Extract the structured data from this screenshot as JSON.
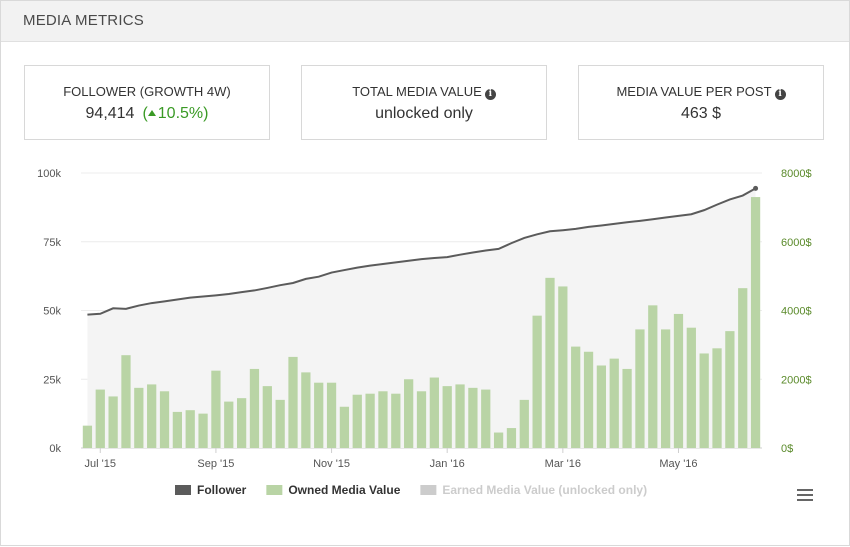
{
  "header": {
    "title": "MEDIA METRICS"
  },
  "cards": [
    {
      "label": "FOLLOWER (GROWTH 4W)",
      "value": "94,414",
      "growth": "10.5%)",
      "growth_prefix": "(",
      "has_info": false
    },
    {
      "label": "TOTAL MEDIA VALUE",
      "value": "unlocked only",
      "has_info": true,
      "info_icon": "info-icon"
    },
    {
      "label": "MEDIA VALUE PER POST",
      "value": "463 $",
      "has_info": true,
      "info_icon": "info-icon"
    }
  ],
  "chart_data": {
    "type": "bar",
    "x_ticks": [
      {
        "label": "Jul '15",
        "index": 1
      },
      {
        "label": "Sep '15",
        "index": 10
      },
      {
        "label": "Nov '15",
        "index": 19
      },
      {
        "label": "Jan '16",
        "index": 28
      },
      {
        "label": "Mar '16",
        "index": 37
      },
      {
        "label": "May '16",
        "index": 46
      }
    ],
    "y_left": {
      "min": 0,
      "max": 100000,
      "ticks": [
        0,
        25000,
        50000,
        75000,
        100000
      ],
      "tick_labels": [
        "0k",
        "25k",
        "50k",
        "75k",
        "100k"
      ]
    },
    "y_right": {
      "min": 0,
      "max": 8000,
      "ticks": [
        0,
        2000,
        4000,
        6000,
        8000
      ],
      "tick_labels": [
        "0$",
        "2000$",
        "4000$",
        "6000$",
        "8000$"
      ],
      "color": "#5a8a2a"
    },
    "series": [
      {
        "name": "Follower",
        "kind": "line",
        "axis": "left",
        "color": "#5b5b5b",
        "values": [
          48500,
          48800,
          50800,
          50600,
          51800,
          52700,
          53300,
          54000,
          54700,
          55100,
          55500,
          56000,
          56700,
          57300,
          58200,
          59200,
          60000,
          61500,
          62300,
          63800,
          64700,
          65600,
          66300,
          66900,
          67500,
          68100,
          68700,
          69100,
          69400,
          70300,
          71100,
          71800,
          72400,
          74500,
          76400,
          77700,
          78800,
          79200,
          79700,
          80400,
          80900,
          81500,
          82100,
          82600,
          83200,
          83800,
          84400,
          85000,
          86500,
          88500,
          90400,
          91800,
          94414
        ]
      },
      {
        "name": "Owned Media Value",
        "kind": "bar",
        "axis": "right",
        "color": "#b9d4a5",
        "values": [
          650,
          1700,
          1500,
          2700,
          1750,
          1850,
          1650,
          1050,
          1100,
          1000,
          2250,
          1350,
          1450,
          2300,
          1800,
          1400,
          2650,
          2200,
          1900,
          1900,
          1200,
          1550,
          1580,
          1650,
          1580,
          2000,
          1650,
          2050,
          1800,
          1850,
          1750,
          1700,
          450,
          580,
          1400,
          3850,
          4950,
          4700,
          2950,
          2800,
          2400,
          2600,
          2300,
          3450,
          4150,
          3450,
          3900,
          3500,
          2750,
          2900,
          3400,
          4650,
          7300
        ]
      },
      {
        "name": "Earned Media Value (unlocked only)",
        "kind": "bar",
        "axis": "right",
        "color": "#cccccc",
        "disabled": true,
        "values": []
      }
    ],
    "legend": {
      "placement": "bottom-center"
    },
    "grid": true
  },
  "menu": {
    "icon": "hamburger-menu-icon"
  }
}
